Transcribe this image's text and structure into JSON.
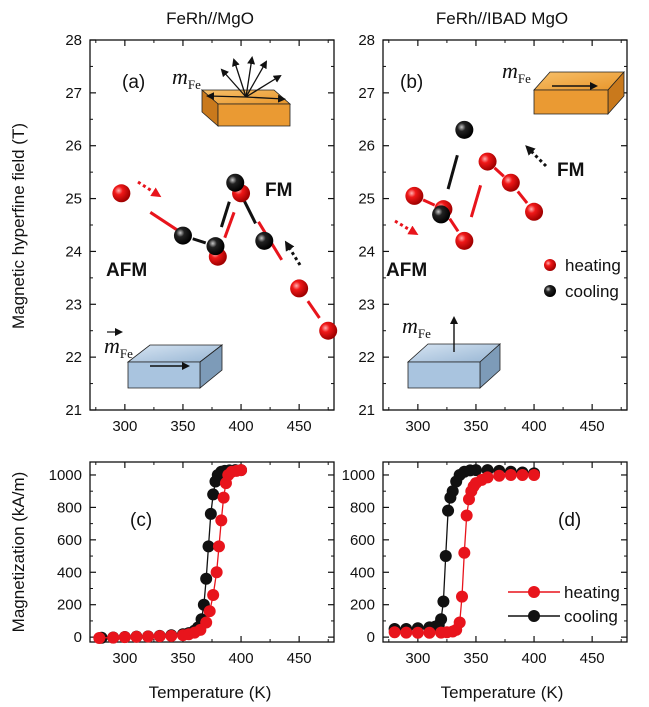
{
  "figure": {
    "column_titles": [
      "FeRh//MgO",
      "FeRh//IBAD MgO"
    ],
    "ylabel_top": "Magnetic hyperfine field (T)",
    "ylabel_bottom": "Magnetization (kA/m)",
    "xlabel": "Temperature (K)"
  },
  "colors": {
    "heating": "#e8141c",
    "cooling": "#111111",
    "fm": "#f5a020",
    "afm": "#2e2e8a",
    "slab_orange": "#f0a23a",
    "slab_blue": "#a9c4df"
  },
  "annotations": {
    "panel_a": {
      "letter": "(a)",
      "fm": "FM",
      "afm": "AFM",
      "m_top": "m",
      "m_top_sub": "Fe",
      "m_bottom": "m",
      "m_bottom_sub": "Fe"
    },
    "panel_b": {
      "letter": "(b)",
      "fm": "FM",
      "afm": "AFM",
      "m_top": "m",
      "m_top_sub": "Fe",
      "m_bottom": "m",
      "m_bottom_sub": "Fe",
      "legend_heating": "heating",
      "legend_cooling": "cooling"
    },
    "panel_c": {
      "letter": "(c)"
    },
    "panel_d": {
      "letter": "(d)",
      "legend_heating": "heating",
      "legend_cooling": "cooling"
    }
  },
  "chart_data": [
    {
      "panel": "a",
      "type": "scatter",
      "title": "FeRh//MgO",
      "xlabel": "",
      "ylabel": "Magnetic hyperfine field (T)",
      "xlim": [
        270,
        480
      ],
      "ylim": [
        21,
        28
      ],
      "xticks": [
        300,
        350,
        400,
        450
      ],
      "yticks": [
        21,
        22,
        23,
        24,
        25,
        26,
        27,
        28
      ],
      "series": [
        {
          "name": "heating",
          "x": [
            297,
            380,
            400,
            450,
            475
          ],
          "y": [
            25.1,
            23.9,
            25.1,
            23.3,
            22.5
          ]
        },
        {
          "name": "cooling",
          "x": [
            350,
            378,
            395,
            420
          ],
          "y": [
            24.3,
            24.1,
            25.3,
            24.2
          ]
        }
      ]
    },
    {
      "panel": "b",
      "type": "scatter",
      "title": "FeRh//IBAD MgO",
      "xlabel": "",
      "ylabel": "",
      "xlim": [
        270,
        480
      ],
      "ylim": [
        21,
        28
      ],
      "xticks": [
        300,
        350,
        400,
        450
      ],
      "yticks": [
        21,
        22,
        23,
        24,
        25,
        26,
        27,
        28
      ],
      "series": [
        {
          "name": "heating",
          "x": [
            297,
            322,
            340,
            360,
            380,
            400
          ],
          "y": [
            25.05,
            24.8,
            24.2,
            25.7,
            25.3,
            24.75
          ]
        },
        {
          "name": "cooling",
          "x": [
            320,
            340
          ],
          "y": [
            24.7,
            26.3
          ]
        }
      ]
    },
    {
      "panel": "c",
      "type": "line",
      "title": "",
      "xlabel": "Temperature (K)",
      "ylabel": "Magnetization (kA/m)",
      "xlim": [
        270,
        480
      ],
      "ylim": [
        -30,
        1080
      ],
      "xticks": [
        300,
        350,
        400,
        450
      ],
      "yticks": [
        0,
        200,
        400,
        600,
        800,
        1000
      ],
      "series": [
        {
          "name": "heating",
          "x": [
            278,
            290,
            300,
            310,
            320,
            330,
            340,
            350,
            355,
            360,
            365,
            370,
            373,
            376,
            379,
            381,
            383,
            385,
            387,
            389,
            392,
            396,
            400
          ],
          "y": [
            -5,
            -3,
            0,
            2,
            4,
            6,
            8,
            12,
            18,
            28,
            45,
            90,
            160,
            260,
            400,
            560,
            720,
            860,
            950,
            1000,
            1020,
            1025,
            1030
          ]
        },
        {
          "name": "cooling",
          "x": [
            400,
            395,
            390,
            386,
            383,
            380,
            378,
            376,
            374,
            372,
            370,
            368,
            366,
            363,
            360,
            355,
            350,
            340,
            330,
            320,
            310,
            300,
            290,
            280
          ],
          "y": [
            1030,
            1030,
            1028,
            1025,
            1020,
            1000,
            960,
            880,
            760,
            560,
            360,
            200,
            110,
            60,
            40,
            25,
            18,
            12,
            8,
            5,
            3,
            1,
            -2,
            -4
          ]
        }
      ]
    },
    {
      "panel": "d",
      "type": "line",
      "title": "",
      "xlabel": "Temperature (K)",
      "ylabel": "",
      "xlim": [
        270,
        480
      ],
      "ylim": [
        -30,
        1080
      ],
      "xticks": [
        300,
        350,
        400,
        450
      ],
      "yticks": [
        0,
        200,
        400,
        600,
        800,
        1000
      ],
      "series": [
        {
          "name": "heating",
          "x": [
            280,
            290,
            300,
            310,
            320,
            325,
            330,
            333,
            336,
            338,
            340,
            342,
            344,
            346,
            348,
            350,
            355,
            360,
            370,
            380,
            390,
            400
          ],
          "y": [
            30,
            28,
            27,
            27,
            28,
            30,
            35,
            45,
            90,
            250,
            520,
            750,
            850,
            900,
            930,
            950,
            970,
            985,
            995,
            1000,
            1000,
            1000
          ]
        },
        {
          "name": "cooling",
          "x": [
            400,
            390,
            380,
            370,
            360,
            350,
            345,
            340,
            336,
            333,
            330,
            328,
            326,
            324,
            322,
            320,
            318,
            315,
            310,
            300,
            290,
            280
          ],
          "y": [
            1010,
            1015,
            1020,
            1025,
            1030,
            1030,
            1028,
            1020,
            1000,
            960,
            900,
            860,
            780,
            500,
            220,
            110,
            75,
            65,
            60,
            55,
            50,
            50
          ]
        }
      ]
    }
  ]
}
